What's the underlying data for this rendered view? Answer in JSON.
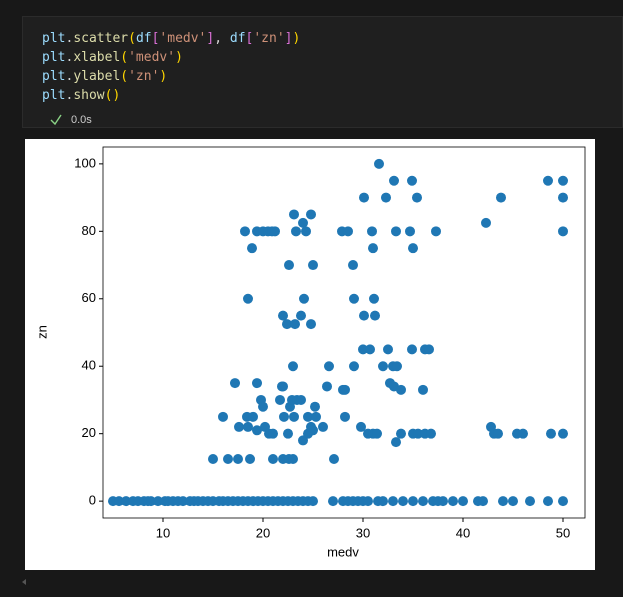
{
  "cell": {
    "code": [
      [
        "plt",
        ".",
        "scatter",
        "(",
        "df",
        "[",
        "'medv'",
        "]",
        ", ",
        "df",
        "[",
        "'zn'",
        "]",
        ")"
      ],
      [
        "plt",
        ".",
        "xlabel",
        "(",
        "'medv'",
        ")"
      ],
      [
        "plt",
        ".",
        "ylabel",
        "(",
        "'zn'",
        ")"
      ],
      [
        "plt",
        ".",
        "show",
        "(",
        ")"
      ]
    ],
    "status": "0.0s"
  },
  "chart_data": {
    "type": "scatter",
    "x_label": "medv",
    "y_label": "zn",
    "color": "#1f77b4",
    "xlim": [
      4,
      52.2
    ],
    "ylim": [
      -5,
      105
    ],
    "xticks": [
      10,
      20,
      30,
      40,
      50
    ],
    "yticks": [
      0,
      20,
      40,
      60,
      80,
      100
    ],
    "grid": false,
    "x": [
      5,
      5.6,
      6.3,
      7,
      7.5,
      8.1,
      8.5,
      8.8,
      9.5,
      10.2,
      10.5,
      11,
      11.5,
      12,
      12.7,
      13.1,
      13.5,
      14,
      14.5,
      15,
      15.6,
      16,
      16.5,
      17,
      17.5,
      18,
      18.5,
      19,
      19.5,
      20,
      20.5,
      21,
      21.5,
      22,
      22.5,
      23,
      23.5,
      24,
      24.5,
      25,
      27,
      28,
      28.5,
      29,
      29.5,
      30,
      30.5,
      31.5,
      32,
      33,
      34,
      35,
      36,
      37,
      37.5,
      38,
      39,
      40,
      41.5,
      42,
      44,
      45,
      46.7,
      48.5,
      50,
      31.6,
      32.3,
      33.1,
      34.9,
      35.4,
      30.1,
      42.3,
      43.8,
      48.5,
      50,
      50,
      50,
      18.2,
      19.4,
      20,
      20.5,
      20.9,
      21.2,
      23.1,
      23.3,
      24,
      24.3,
      24.8,
      27.9,
      28.5,
      29,
      30.9,
      31,
      33.3,
      34.7,
      35,
      37.3,
      18.9,
      22.6,
      25,
      18.5,
      24.1,
      29.1,
      31.1,
      30.1,
      31.2,
      22,
      23.8,
      22.4,
      23.2,
      24.8,
      26.6,
      29.1,
      30,
      30.7,
      32,
      32.5,
      33,
      33.4,
      34.9,
      36.2,
      36.6,
      23,
      17.2,
      19.4,
      22,
      26.4,
      28,
      28.2,
      32.7,
      33.1,
      33.8,
      36,
      16,
      17.6,
      18.4,
      18.5,
      19,
      19.4,
      19.8,
      20,
      20.2,
      20.6,
      21,
      21.7,
      21.9,
      22.1,
      22.7,
      22.9,
      23.4,
      23.8,
      23.1,
      24.5,
      24,
      24.5,
      24.8,
      25,
      25.2,
      25.3,
      22.5,
      26,
      28.2,
      29.8,
      30.5,
      31,
      31.4,
      33.3,
      33.8,
      35,
      35.5,
      36.2,
      36.8,
      42.8,
      43.1,
      43.5,
      45.4,
      46,
      48.8,
      50,
      15,
      16.5,
      17.5,
      18.7,
      21,
      22,
      22.6,
      23,
      27.1
    ],
    "values": [
      0,
      0,
      0,
      0,
      0,
      0,
      0,
      0,
      0,
      0,
      0,
      0,
      0,
      0,
      0,
      0,
      0,
      0,
      0,
      0,
      0,
      0,
      0,
      0,
      0,
      0,
      0,
      0,
      0,
      0,
      0,
      0,
      0,
      0,
      0,
      0,
      0,
      0,
      0,
      0,
      0,
      0,
      0,
      0,
      0,
      0,
      0,
      0,
      0,
      0,
      0,
      0,
      0,
      0,
      0,
      0,
      0,
      0,
      0,
      0,
      0,
      0,
      0,
      0,
      0,
      100,
      90,
      95,
      95,
      90,
      90,
      82.5,
      90,
      95,
      95,
      90,
      80,
      80,
      80,
      80,
      80,
      80,
      80,
      85,
      80,
      82.5,
      80,
      85,
      80,
      80,
      70,
      80,
      75,
      80,
      80,
      75,
      80,
      75,
      70,
      70,
      60,
      60,
      60,
      60,
      55,
      55,
      55,
      55,
      52.5,
      52.5,
      52.5,
      40,
      40,
      45,
      45,
      40,
      45,
      40,
      40,
      45,
      45,
      45,
      40,
      35,
      35,
      34,
      34,
      33,
      33,
      35,
      34,
      33,
      33,
      25,
      22,
      25,
      22,
      25,
      21,
      30,
      28,
      22,
      20,
      20,
      30,
      34,
      25,
      28,
      30,
      30,
      30,
      25,
      25,
      18,
      20,
      22,
      21,
      28,
      25,
      20,
      22,
      25,
      22,
      20,
      20,
      20,
      17.5,
      20,
      20,
      20,
      20,
      20,
      22,
      20,
      20,
      20,
      20,
      20,
      20,
      12.5,
      12.5,
      12.5,
      12.5,
      12.5,
      12.5,
      12.5,
      12.5,
      12.5
    ]
  }
}
